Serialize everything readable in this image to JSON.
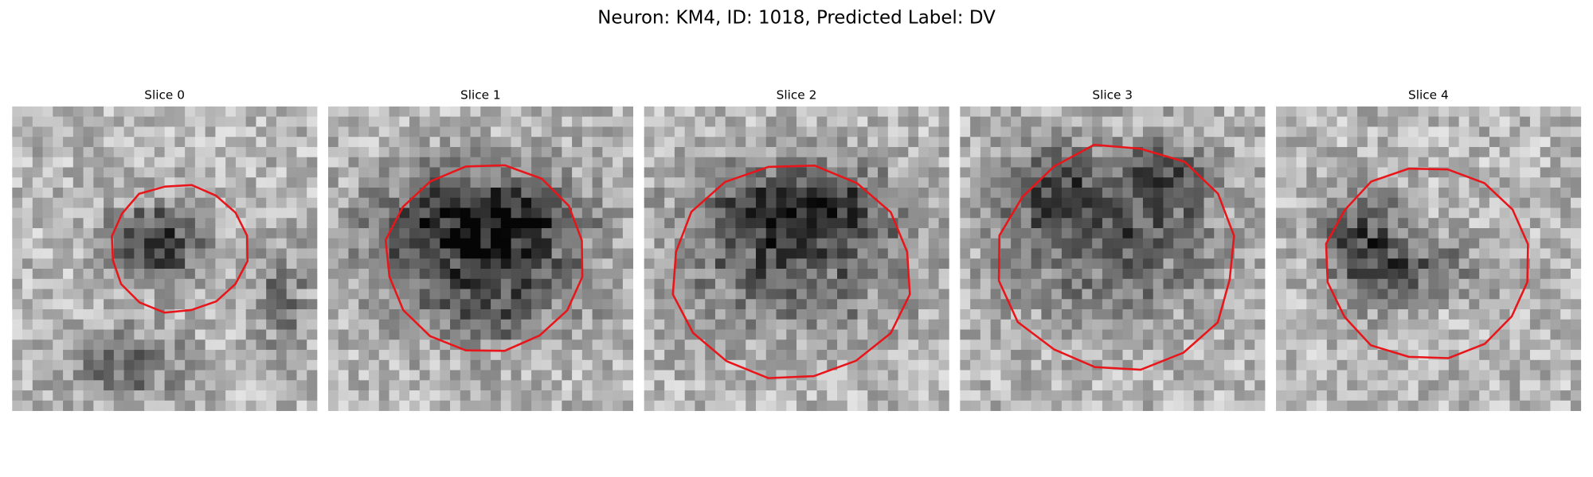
{
  "title": "Neuron: KM4, ID: 1018, Predicted Label: DV",
  "panels": [
    {
      "title": "Slice 0"
    },
    {
      "title": "Slice 1"
    },
    {
      "title": "Slice 2"
    },
    {
      "title": "Slice 3"
    },
    {
      "title": "Slice 4"
    }
  ]
}
